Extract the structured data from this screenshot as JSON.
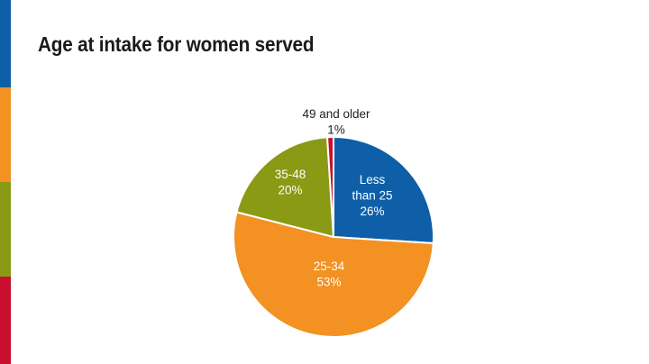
{
  "slide": {
    "title": "Age at intake for women served",
    "stripe_colors": [
      "#0e5fa8",
      "#f39122",
      "#8b9a14",
      "#c8102e"
    ]
  },
  "chart_data": {
    "type": "pie",
    "title": "Age at intake for women served",
    "slices": [
      {
        "label_lines": [
          "Less",
          "than 25"
        ],
        "value": 26,
        "percent_label": "26%",
        "color": "#0e5fa8",
        "label_position": "inside"
      },
      {
        "label_lines": [
          "25-34"
        ],
        "value": 53,
        "percent_label": "53%",
        "color": "#f39122",
        "label_position": "inside"
      },
      {
        "label_lines": [
          "35-48"
        ],
        "value": 20,
        "percent_label": "20%",
        "color": "#8b9a14",
        "label_position": "inside"
      },
      {
        "label_lines": [
          "49 and older"
        ],
        "value": 1,
        "percent_label": "1%",
        "color": "#c8102e",
        "label_position": "outside"
      }
    ],
    "start": "12 o'clock",
    "direction": "clockwise",
    "slice_border_color": "#ffffff"
  }
}
